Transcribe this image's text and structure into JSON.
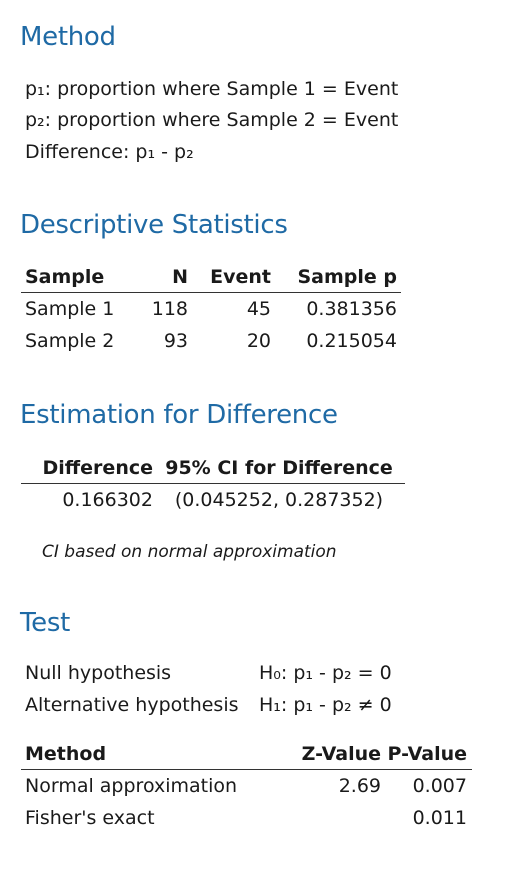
{
  "method": {
    "title": "Method",
    "lines": [
      "p₁: proportion where Sample 1 = Event",
      "p₂: proportion where Sample 2 = Event",
      "Difference: p₁ - p₂"
    ]
  },
  "descriptive": {
    "title": "Descriptive Statistics",
    "headers": [
      "Sample",
      "N",
      "Event",
      "Sample p"
    ],
    "rows": [
      [
        "Sample 1",
        "118",
        "45",
        "0.381356"
      ],
      [
        "Sample 2",
        "93",
        "20",
        "0.215054"
      ]
    ]
  },
  "estimation": {
    "title": "Estimation for Difference",
    "headers": [
      "Difference",
      "95% CI for Difference"
    ],
    "row": [
      "0.166302",
      "(0.045252, 0.287352)"
    ],
    "note": "CI based on normal approximation"
  },
  "test": {
    "title": "Test",
    "hypotheses": [
      {
        "label": "Null hypothesis",
        "value": "H₀: p₁ - p₂ = 0"
      },
      {
        "label": "Alternative hypothesis",
        "value": "H₁: p₁ - p₂ ≠ 0"
      }
    ],
    "headers": [
      "Method",
      "Z-Value",
      "P-Value"
    ],
    "rows": [
      [
        "Normal approximation",
        "2.69",
        "0.007"
      ],
      [
        "Fisher's exact",
        "",
        "0.011"
      ]
    ]
  },
  "colors": {
    "heading": "#1f6aa5",
    "text": "#1a1a1a",
    "rule": "#333333"
  }
}
